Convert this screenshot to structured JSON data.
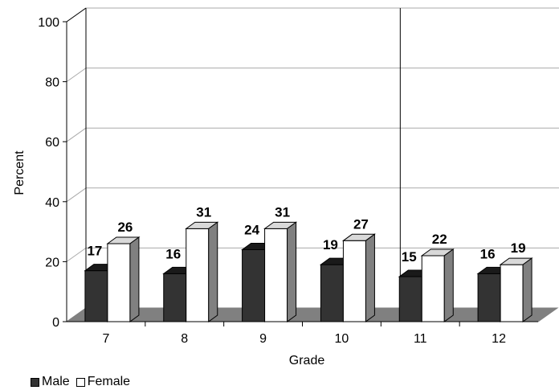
{
  "chart_data": {
    "type": "bar",
    "categories": [
      "7",
      "8",
      "9",
      "10",
      "11",
      "12"
    ],
    "series": [
      {
        "name": "Male",
        "values": [
          17,
          16,
          24,
          19,
          15,
          16
        ],
        "color": "#333333"
      },
      {
        "name": "Female",
        "values": [
          26,
          31,
          31,
          27,
          22,
          19
        ],
        "color": "#ffffff"
      }
    ],
    "xlabel": "Grade",
    "ylabel": "Percent",
    "ylim": [
      0,
      100
    ],
    "yticks": [
      "0",
      "20",
      "40",
      "60",
      "80",
      "100"
    ],
    "grid": true,
    "legend_position": "bottom-left",
    "style": "3d-clustered-column"
  }
}
